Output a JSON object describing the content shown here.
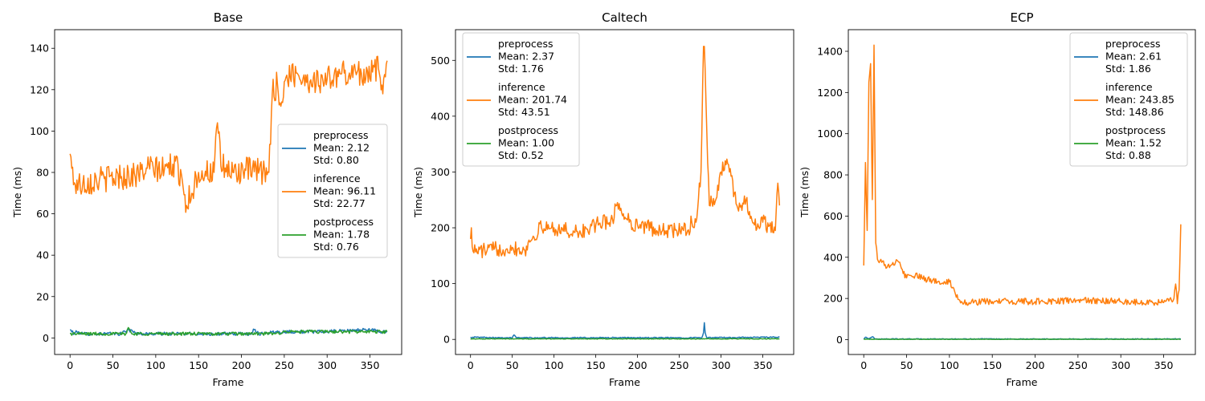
{
  "chart_data": [
    {
      "type": "line",
      "title": "Base",
      "xlabel": "Frame",
      "ylabel": "Time (ms)",
      "xlim": [
        -18,
        387
      ],
      "ylim": [
        -8,
        149
      ],
      "xticks": [
        0,
        50,
        100,
        150,
        200,
        250,
        300,
        350
      ],
      "yticks": [
        0,
        20,
        40,
        60,
        80,
        100,
        120,
        140
      ],
      "legend_position": "center-right",
      "n_points": 371,
      "series": [
        {
          "name": "preprocess",
          "stats": [
            "Mean: 2.12",
            "Std: 0.80"
          ],
          "color": "#1f77b4",
          "anchors": [
            [
              0,
              4
            ],
            [
              5,
              2
            ],
            [
              8,
              3
            ],
            [
              15,
              2
            ],
            [
              60,
              2
            ],
            [
              67,
              4
            ],
            [
              80,
              2
            ],
            [
              150,
              2
            ],
            [
              210,
              2
            ],
            [
              215,
              4
            ],
            [
              220,
              2
            ],
            [
              240,
              3
            ],
            [
              300,
              3
            ],
            [
              345,
              4
            ],
            [
              352,
              4
            ],
            [
              360,
              3
            ],
            [
              370,
              3
            ]
          ],
          "noise": 0.8
        },
        {
          "name": "inference",
          "stats": [
            "Mean: 96.11",
            "Std: 22.77"
          ],
          "color": "#ff7f0e",
          "anchors": [
            [
              0,
              89
            ],
            [
              2,
              82
            ],
            [
              6,
              74
            ],
            [
              15,
              75
            ],
            [
              40,
              77
            ],
            [
              60,
              78
            ],
            [
              80,
              79
            ],
            [
              90,
              82
            ],
            [
              110,
              81
            ],
            [
              120,
              84
            ],
            [
              130,
              79
            ],
            [
              136,
              64
            ],
            [
              150,
              80
            ],
            [
              168,
              80
            ],
            [
              172,
              104
            ],
            [
              176,
              83
            ],
            [
              190,
              80
            ],
            [
              205,
              81
            ],
            [
              225,
              80
            ],
            [
              232,
              80
            ],
            [
              236,
              118
            ],
            [
              242,
              123
            ],
            [
              246,
              112
            ],
            [
              252,
              126
            ],
            [
              265,
              128
            ],
            [
              280,
              124
            ],
            [
              300,
              125
            ],
            [
              320,
              128
            ],
            [
              340,
              128
            ],
            [
              360,
              130
            ],
            [
              365,
              118
            ],
            [
              370,
              134
            ]
          ],
          "noise": 6.5
        },
        {
          "name": "postprocess",
          "stats": [
            "Mean: 1.78",
            "Std: 0.76"
          ],
          "color": "#2ca02c",
          "anchors": [
            [
              0,
              2
            ],
            [
              65,
              2
            ],
            [
              68,
              5
            ],
            [
              72,
              2
            ],
            [
              240,
              2
            ],
            [
              250,
              3
            ],
            [
              370,
              3
            ]
          ],
          "noise": 0.8
        }
      ]
    },
    {
      "type": "line",
      "title": "Caltech",
      "xlabel": "Frame",
      "ylabel": "Time (ms)",
      "xlim": [
        -18,
        387
      ],
      "ylim": [
        -27,
        555
      ],
      "xticks": [
        0,
        50,
        100,
        150,
        200,
        250,
        300,
        350
      ],
      "yticks": [
        0,
        100,
        200,
        300,
        400,
        500
      ],
      "legend_position": "top-left",
      "n_points": 371,
      "series": [
        {
          "name": "preprocess",
          "stats": [
            "Mean: 2.37",
            "Std: 1.76"
          ],
          "color": "#1f77b4",
          "anchors": [
            [
              0,
              4
            ],
            [
              50,
              3
            ],
            [
              52,
              8
            ],
            [
              55,
              3
            ],
            [
              277,
              3
            ],
            [
              279,
              12
            ],
            [
              280,
              30
            ],
            [
              281,
              12
            ],
            [
              283,
              3
            ],
            [
              370,
              4
            ]
          ],
          "noise": 1.0
        },
        {
          "name": "inference",
          "stats": [
            "Mean: 201.74",
            "Std: 43.51"
          ],
          "color": "#ff7f0e",
          "anchors": [
            [
              0,
              180
            ],
            [
              1,
              200
            ],
            [
              3,
              158
            ],
            [
              20,
              160
            ],
            [
              50,
              165
            ],
            [
              65,
              160
            ],
            [
              75,
              185
            ],
            [
              85,
              200
            ],
            [
              100,
              200
            ],
            [
              130,
              190
            ],
            [
              150,
              205
            ],
            [
              170,
              215
            ],
            [
              175,
              240
            ],
            [
              180,
              235
            ],
            [
              190,
              210
            ],
            [
              200,
              205
            ],
            [
              230,
              195
            ],
            [
              260,
              195
            ],
            [
              265,
              210
            ],
            [
              270,
              210
            ],
            [
              276,
              300
            ],
            [
              279,
              525
            ],
            [
              280,
              525
            ],
            [
              283,
              370
            ],
            [
              286,
              240
            ],
            [
              295,
              255
            ],
            [
              300,
              300
            ],
            [
              305,
              320
            ],
            [
              310,
              300
            ],
            [
              320,
              235
            ],
            [
              330,
              250
            ],
            [
              340,
              205
            ],
            [
              350,
              210
            ],
            [
              365,
              195
            ],
            [
              368,
              280
            ],
            [
              370,
              240
            ]
          ],
          "noise": 14
        },
        {
          "name": "postprocess",
          "stats": [
            "Mean: 1.00",
            "Std: 0.52"
          ],
          "color": "#2ca02c",
          "anchors": [
            [
              0,
              1
            ],
            [
              370,
              1
            ]
          ],
          "noise": 0.5
        }
      ]
    },
    {
      "type": "line",
      "title": "ECP",
      "xlabel": "Frame",
      "ylabel": "Time (ms)",
      "xlim": [
        -18,
        387
      ],
      "ylim": [
        -72,
        1505
      ],
      "xticks": [
        0,
        50,
        100,
        150,
        200,
        250,
        300,
        350
      ],
      "yticks": [
        0,
        200,
        400,
        600,
        800,
        1000,
        1200,
        1400
      ],
      "legend_position": "top-right",
      "n_points": 371,
      "series": [
        {
          "name": "preprocess",
          "stats": [
            "Mean: 2.61",
            "Std: 1.86"
          ],
          "color": "#1f77b4",
          "anchors": [
            [
              0,
              3
            ],
            [
              2,
              12
            ],
            [
              6,
              5
            ],
            [
              10,
              14
            ],
            [
              14,
              3
            ],
            [
              370,
              3
            ]
          ],
          "noise": 2
        },
        {
          "name": "inference",
          "stats": [
            "Mean: 243.85",
            "Std: 148.86"
          ],
          "color": "#ff7f0e",
          "anchors": [
            [
              0,
              360
            ],
            [
              2,
              860
            ],
            [
              4,
              530
            ],
            [
              6,
              1250
            ],
            [
              8,
              1340
            ],
            [
              10,
              680
            ],
            [
              12,
              1430
            ],
            [
              14,
              470
            ],
            [
              16,
              390
            ],
            [
              30,
              350
            ],
            [
              40,
              380
            ],
            [
              50,
              300
            ],
            [
              60,
              310
            ],
            [
              80,
              285
            ],
            [
              100,
              280
            ],
            [
              105,
              250
            ],
            [
              110,
              195
            ],
            [
              120,
              180
            ],
            [
              150,
              185
            ],
            [
              200,
              185
            ],
            [
              250,
              190
            ],
            [
              300,
              185
            ],
            [
              350,
              180
            ],
            [
              362,
              200
            ],
            [
              364,
              270
            ],
            [
              366,
              175
            ],
            [
              368,
              240
            ],
            [
              370,
              560
            ]
          ],
          "noise": 16
        },
        {
          "name": "postprocess",
          "stats": [
            "Mean: 1.52",
            "Std: 0.88"
          ],
          "color": "#2ca02c",
          "anchors": [
            [
              0,
              2
            ],
            [
              370,
              2
            ]
          ],
          "noise": 0.8
        }
      ]
    }
  ]
}
